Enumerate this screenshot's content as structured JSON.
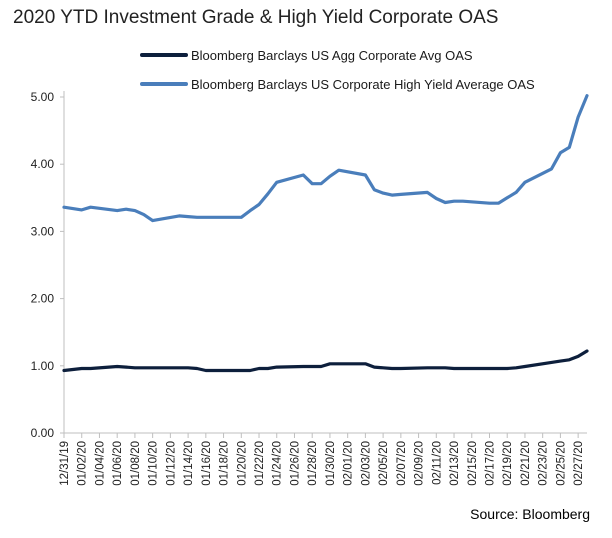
{
  "chart_data": {
    "type": "line",
    "title": "2020 YTD Investment Grade & High Yield Corporate OAS",
    "source": "Source: Bloomberg",
    "xlabel": "",
    "ylabel": "",
    "ylim": [
      0,
      5
    ],
    "yticks": [
      "0.00",
      "1.00",
      "2.00",
      "3.00",
      "4.00",
      "5.00"
    ],
    "grid": false,
    "legend_position": "top",
    "x": [
      "12/31/19",
      "01/02/20",
      "01/03/20",
      "01/06/20",
      "01/07/20",
      "01/08/20",
      "01/09/20",
      "01/10/20",
      "01/13/20",
      "01/14/20",
      "01/15/20",
      "01/16/20",
      "01/17/20",
      "01/20/20",
      "01/21/20",
      "01/22/20",
      "01/23/20",
      "01/24/20",
      "01/27/20",
      "01/28/20",
      "01/29/20",
      "01/30/20",
      "01/31/20",
      "02/03/20",
      "02/04/20",
      "02/05/20",
      "02/06/20",
      "02/07/20",
      "02/10/20",
      "02/11/20",
      "02/12/20",
      "02/13/20",
      "02/14/20",
      "02/17/20",
      "02/18/20",
      "02/19/20",
      "02/20/20",
      "02/21/20",
      "02/24/20",
      "02/25/20",
      "02/26/20",
      "02/27/20",
      "02/28/20"
    ],
    "xtick_labels": [
      "12/31/19",
      "01/02/20",
      "01/04/20",
      "01/06/20",
      "01/08/20",
      "01/10/20",
      "01/12/20",
      "01/14/20",
      "01/16/20",
      "01/18/20",
      "01/20/20",
      "01/22/20",
      "01/24/20",
      "01/26/20",
      "01/28/20",
      "01/30/20",
      "02/01/20",
      "02/03/20",
      "02/05/20",
      "02/07/20",
      "02/09/20",
      "02/11/20",
      "02/13/20",
      "02/15/20",
      "02/17/20",
      "02/19/20",
      "02/21/20",
      "02/23/20",
      "02/25/20",
      "02/27/20"
    ],
    "series": [
      {
        "name": "Bloomberg Barclays US Agg Corporate Avg OAS",
        "color": "#0d1f3c",
        "values": [
          0.93,
          0.96,
          0.96,
          0.99,
          0.98,
          0.97,
          0.97,
          0.97,
          0.97,
          0.97,
          0.96,
          0.93,
          0.93,
          0.93,
          0.93,
          0.96,
          0.96,
          0.98,
          0.99,
          0.99,
          0.99,
          1.03,
          1.03,
          1.03,
          0.98,
          0.97,
          0.96,
          0.96,
          0.97,
          0.97,
          0.97,
          0.96,
          0.96,
          0.96,
          0.96,
          0.96,
          0.97,
          0.99,
          1.05,
          1.07,
          1.09,
          1.14,
          1.22
        ]
      },
      {
        "name": "Bloomberg Barclays US Corporate High Yield Average OAS",
        "color": "#4a7ebb",
        "values": [
          3.36,
          3.32,
          3.36,
          3.31,
          3.33,
          3.31,
          3.25,
          3.16,
          3.23,
          3.22,
          3.21,
          3.21,
          3.21,
          3.21,
          3.31,
          3.4,
          3.56,
          3.73,
          3.84,
          3.71,
          3.71,
          3.82,
          3.91,
          3.84,
          3.62,
          3.57,
          3.54,
          3.55,
          3.58,
          3.49,
          3.43,
          3.45,
          3.45,
          3.42,
          3.42,
          3.5,
          3.58,
          3.73,
          3.93,
          4.17,
          4.25,
          4.7,
          5.02
        ]
      }
    ]
  }
}
